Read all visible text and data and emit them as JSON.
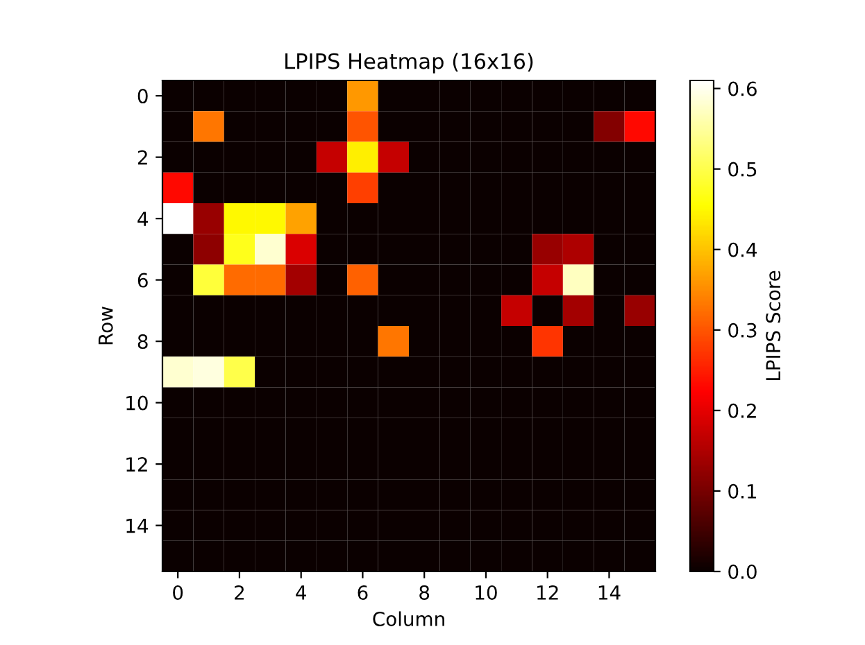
{
  "chart_data": {
    "type": "heatmap",
    "title": "LPIPS Heatmap (16x16)",
    "xlabel": "Column",
    "ylabel": "Row",
    "clabel": "LPIPS Score",
    "clim": [
      0,
      0.61
    ],
    "cticks": [
      {
        "value": 0,
        "label": "0.0"
      },
      0.1,
      0.2,
      0.3,
      0.4,
      0.5,
      0.6
    ],
    "xlim": [
      -0.5,
      15.5
    ],
    "ylim": [
      15.5,
      -0.5
    ],
    "xticks": [
      0,
      2,
      4,
      6,
      8,
      10,
      12,
      14
    ],
    "yticks": [
      0,
      2,
      4,
      6,
      8,
      10,
      12,
      14
    ],
    "cells": [
      [
        0,
        0,
        0,
        0,
        0,
        0,
        0.36,
        0,
        0,
        0,
        0,
        0,
        0,
        0,
        0,
        0
      ],
      [
        0,
        0.33,
        0,
        0,
        0,
        0,
        0.3,
        0,
        0,
        0,
        0,
        0,
        0,
        0,
        0.11,
        0.23
      ],
      [
        0,
        0,
        0,
        0,
        0,
        0.17,
        0.44,
        0.17,
        0,
        0,
        0,
        0,
        0,
        0,
        0,
        0
      ],
      [
        0.23,
        0,
        0,
        0,
        0,
        0,
        0.28,
        0,
        0,
        0,
        0,
        0,
        0,
        0,
        0,
        0
      ],
      [
        0.61,
        0.13,
        0.45,
        0.45,
        0.37,
        0,
        0,
        0,
        0,
        0,
        0,
        0,
        0,
        0,
        0,
        0
      ],
      [
        0,
        0.12,
        0.47,
        0.58,
        0.19,
        0,
        0,
        0,
        0,
        0,
        0,
        0,
        0.13,
        0.15,
        0,
        0
      ],
      [
        0,
        0.49,
        0.32,
        0.32,
        0.14,
        0,
        0.31,
        0,
        0,
        0,
        0,
        0,
        0.17,
        0.57,
        0,
        0
      ],
      [
        0,
        0,
        0,
        0,
        0,
        0,
        0,
        0,
        0,
        0,
        0,
        0.17,
        0,
        0.14,
        0,
        0.13
      ],
      [
        0,
        0,
        0,
        0,
        0,
        0,
        0,
        0.33,
        0,
        0,
        0,
        0,
        0.27,
        0,
        0,
        0
      ],
      [
        0.58,
        0.59,
        0.5,
        0,
        0,
        0,
        0,
        0,
        0,
        0,
        0,
        0,
        0,
        0,
        0,
        0
      ],
      [
        0,
        0,
        0,
        0,
        0,
        0,
        0,
        0,
        0,
        0,
        0,
        0,
        0,
        0,
        0,
        0
      ],
      [
        0,
        0,
        0,
        0,
        0,
        0,
        0,
        0,
        0,
        0,
        0,
        0,
        0,
        0,
        0,
        0
      ],
      [
        0,
        0,
        0,
        0,
        0,
        0,
        0,
        0,
        0,
        0,
        0,
        0,
        0,
        0,
        0,
        0
      ],
      [
        0,
        0,
        0,
        0,
        0,
        0,
        0,
        0,
        0,
        0,
        0,
        0,
        0,
        0,
        0,
        0
      ],
      [
        0,
        0,
        0,
        0,
        0,
        0,
        0,
        0,
        0,
        0,
        0,
        0,
        0,
        0,
        0,
        0
      ],
      [
        0,
        0,
        0,
        0,
        0,
        0,
        0,
        0,
        0,
        0,
        0,
        0,
        0,
        0,
        0,
        0
      ]
    ]
  }
}
